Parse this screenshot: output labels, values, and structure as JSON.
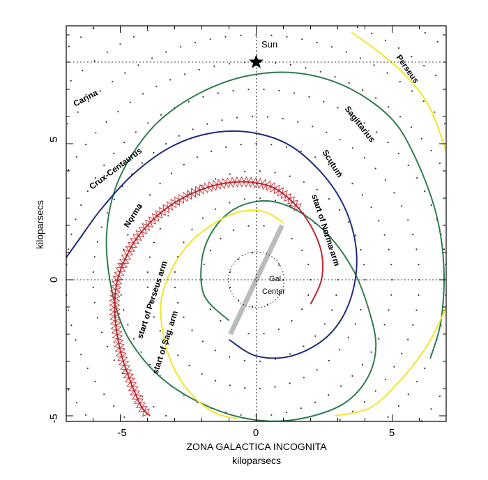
{
  "chart_data": {
    "type": "line",
    "title": "",
    "xlabel": "kiloparsecs",
    "xlabel_caption": "ZONA GALACTICA INCOGNITA",
    "ylabel": "kiloparsecs",
    "xlim": [
      -7,
      7
    ],
    "ylim": [
      -5,
      9.1
    ],
    "xticks": [
      -5,
      0,
      5
    ],
    "yticks": [
      -5,
      0,
      5
    ],
    "grid": "dotted",
    "bar": {
      "x": [
        -0.95,
        0.95
      ],
      "y": [
        -2.0,
        2.0
      ],
      "color": "#bbbbbb"
    },
    "dashed_lines": {
      "y": 8.0,
      "x": 0
    },
    "sun": {
      "label": "Sun",
      "x": 0,
      "y": 8.0
    },
    "center": {
      "label_line1": "Gal.",
      "label_line2": "Center",
      "x": 0,
      "y": 0
    },
    "arms": [
      {
        "name": "Sagittarius-Carina",
        "label_a": "Carina",
        "label_b": "Sagittarius",
        "color": "#2e7d4f",
        "points": [
          [
            -1.0,
            -1.5
          ],
          [
            -1.9,
            -0.6
          ],
          [
            -2.0,
            0.7
          ],
          [
            -1.6,
            1.8
          ],
          [
            -0.8,
            2.6
          ],
          [
            0.3,
            2.9
          ],
          [
            1.4,
            2.6
          ],
          [
            2.6,
            1.7
          ],
          [
            3.6,
            0.3
          ],
          [
            4.2,
            -1.3
          ],
          [
            4.4,
            -2.5
          ],
          [
            4.1,
            -3.6
          ],
          [
            3.3,
            -4.5
          ],
          [
            2.1,
            -5.0
          ],
          [
            0.7,
            -5.2
          ],
          [
            -0.8,
            -5.0
          ],
          [
            -2.3,
            -4.4
          ],
          [
            -3.5,
            -3.6
          ],
          [
            -4.4,
            -2.6
          ],
          [
            -5.0,
            -1.5
          ],
          [
            -5.4,
            0.1
          ],
          [
            -5.5,
            1.7
          ],
          [
            -5.2,
            3.3
          ],
          [
            -4.5,
            4.7
          ],
          [
            -3.5,
            5.9
          ],
          [
            -2.0,
            6.9
          ],
          [
            -0.3,
            7.5
          ],
          [
            1.5,
            7.6
          ],
          [
            3.3,
            7.1
          ],
          [
            4.9,
            6.0
          ],
          [
            5.8,
            4.6
          ],
          [
            6.6,
            2.5
          ],
          [
            6.9,
            0.5
          ],
          [
            6.8,
            -1.5
          ],
          [
            6.4,
            -2.9
          ]
        ]
      },
      {
        "name": "Scutum-Crux-Centaurus",
        "label_a": "Crux-Centaurus",
        "label_b": "Scutum",
        "color": "#1f2a7a",
        "points": [
          [
            -1.0,
            -2.2
          ],
          [
            0.0,
            -2.8
          ],
          [
            1.3,
            -2.8
          ],
          [
            2.6,
            -2.1
          ],
          [
            3.4,
            -0.9
          ],
          [
            3.7,
            0.7
          ],
          [
            3.4,
            2.3
          ],
          [
            2.6,
            3.7
          ],
          [
            1.3,
            4.9
          ],
          [
            -0.1,
            5.4
          ],
          [
            -1.6,
            5.4
          ],
          [
            -3.1,
            4.9
          ],
          [
            -4.5,
            3.9
          ],
          [
            -5.7,
            2.6
          ],
          [
            -6.5,
            1.5
          ],
          [
            -7.0,
            0.8
          ]
        ]
      },
      {
        "name": "Norma",
        "label_a": "Norma",
        "label_b": "start of Norma arm",
        "color": "#c0272d",
        "points": [
          [
            2.0,
            -0.9
          ],
          [
            2.4,
            0.0
          ],
          [
            2.4,
            1.0
          ],
          [
            2.0,
            2.0
          ],
          [
            1.4,
            2.8
          ],
          [
            0.6,
            3.4
          ],
          [
            -0.4,
            3.6
          ],
          [
            -1.4,
            3.5
          ],
          [
            -2.3,
            3.2
          ],
          [
            -3.2,
            2.7
          ],
          [
            -4.0,
            2.0
          ],
          [
            -4.6,
            1.2
          ],
          [
            -5.1,
            0.0
          ],
          [
            -5.2,
            -1.2
          ],
          [
            -5.0,
            -2.6
          ],
          [
            -4.6,
            -3.8
          ],
          [
            -4.2,
            -4.7
          ],
          [
            -3.9,
            -5.0
          ]
        ]
      },
      {
        "name": "Perseus",
        "label_a": "start of Perseus arm",
        "label_b": "Perseus",
        "color": "#f4e528",
        "points": [
          [
            1.0,
            2.1
          ],
          [
            0.3,
            2.5
          ],
          [
            -0.6,
            2.5
          ],
          [
            -1.5,
            2.1
          ],
          [
            -2.4,
            1.4
          ],
          [
            -3.1,
            0.4
          ],
          [
            -3.5,
            -0.8
          ],
          [
            -3.4,
            -2.1
          ],
          [
            -3.0,
            -3.3
          ],
          [
            -2.3,
            -4.3
          ],
          [
            -1.5,
            -4.9
          ],
          [
            -0.7,
            -5.1
          ]
        ]
      },
      {
        "name": "Perseus-outer",
        "label_a": "",
        "label_b": "",
        "color": "#f4e528",
        "points": [
          [
            3.5,
            9.1
          ],
          [
            4.6,
            8.3
          ],
          [
            5.6,
            7.4
          ],
          [
            6.4,
            6.3
          ],
          [
            7.0,
            4.7
          ]
        ]
      },
      {
        "name": "Perseus-outer-2",
        "label_a": "",
        "label_b": "",
        "color": "#f4e528",
        "points": [
          [
            7.0,
            -1.0
          ],
          [
            6.3,
            -2.4
          ],
          [
            5.3,
            -3.7
          ],
          [
            4.2,
            -4.7
          ],
          [
            2.9,
            -5.0
          ]
        ]
      }
    ],
    "labels": {
      "carina": "Carina",
      "sagittarius": "Sagittarius",
      "crux": "Crux-Centaurus",
      "scutum": "Scutum",
      "norma": "Norma",
      "start_norma": "start of Norma arm",
      "start_perseus": "start of Perseus arm",
      "start_sag": "start of Sag. arm",
      "perseus": "Perseus"
    }
  }
}
